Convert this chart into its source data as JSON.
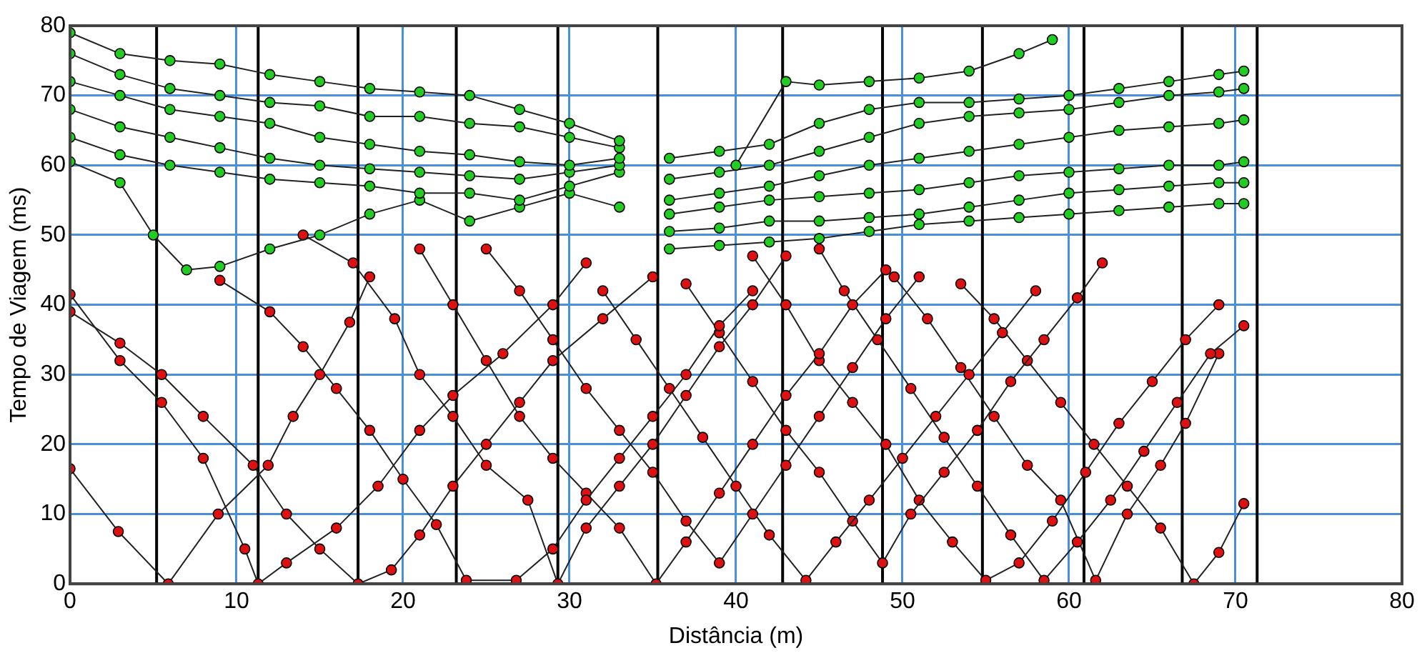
{
  "chart_data": {
    "type": "line",
    "xlabel": "Distância (m)",
    "ylabel": "Tempo de Viagem (ms)",
    "xlim": [
      0,
      80
    ],
    "ylim": [
      0,
      80
    ],
    "xticks": [
      0,
      10,
      20,
      30,
      40,
      50,
      60,
      70,
      80
    ],
    "yticks": [
      0,
      10,
      20,
      30,
      40,
      50,
      60,
      70,
      80
    ],
    "grid": true,
    "legend": false,
    "marker": "circle",
    "line_style": "solid",
    "ref_lines": [
      {
        "axis": "x",
        "value": 5.2,
        "color": "#000000"
      },
      {
        "axis": "x",
        "value": 11.3,
        "color": "#000000"
      },
      {
        "axis": "x",
        "value": 17.3,
        "color": "#000000"
      },
      {
        "axis": "x",
        "value": 23.2,
        "color": "#000000"
      },
      {
        "axis": "x",
        "value": 29.3,
        "color": "#000000"
      },
      {
        "axis": "x",
        "value": 35.3,
        "color": "#000000"
      },
      {
        "axis": "x",
        "value": 42.8,
        "color": "#000000"
      },
      {
        "axis": "x",
        "value": 48.8,
        "color": "#000000"
      },
      {
        "axis": "x",
        "value": 54.8,
        "color": "#000000"
      },
      {
        "axis": "x",
        "value": 60.9,
        "color": "#000000"
      },
      {
        "axis": "x",
        "value": 66.8,
        "color": "#000000"
      },
      {
        "axis": "x",
        "value": 71.3,
        "color": "#000000"
      }
    ],
    "series": [
      {
        "color": "#22cc22",
        "x": [
          0,
          3,
          6,
          9,
          12,
          15,
          18,
          21,
          24,
          27,
          30,
          33
        ],
        "values": [
          79,
          76,
          75,
          74.5,
          73,
          72,
          71,
          70.5,
          70,
          68,
          66,
          63.5
        ]
      },
      {
        "color": "#22cc22",
        "x": [
          0,
          3,
          6,
          9,
          12,
          15,
          18,
          21,
          24,
          27,
          30,
          33
        ],
        "values": [
          76,
          73,
          71,
          70,
          69,
          68.5,
          67,
          67,
          66,
          65.5,
          64,
          62.5
        ]
      },
      {
        "color": "#22cc22",
        "x": [
          0,
          3,
          6,
          9,
          12,
          15,
          18,
          21,
          24,
          27,
          30,
          33
        ],
        "values": [
          72,
          70,
          68,
          67,
          66,
          64,
          63,
          62,
          61.5,
          60.5,
          60,
          61
        ]
      },
      {
        "color": "#22cc22",
        "x": [
          0,
          3,
          6,
          9,
          12,
          15,
          18,
          21,
          24,
          27,
          30,
          33
        ],
        "values": [
          68,
          65.5,
          64,
          62.5,
          61,
          60,
          59.5,
          59,
          58.5,
          58,
          59,
          60
        ]
      },
      {
        "color": "#22cc22",
        "x": [
          0,
          3,
          6,
          9,
          12,
          15,
          18,
          21,
          24,
          27,
          30,
          33
        ],
        "values": [
          64,
          61.5,
          60,
          59,
          58,
          57.5,
          57,
          56,
          56,
          55,
          57,
          59
        ]
      },
      {
        "color": "#22cc22",
        "x": [
          0,
          3,
          5,
          7,
          9,
          12,
          15,
          18,
          21,
          24,
          27,
          30,
          33
        ],
        "values": [
          60.5,
          57.5,
          50,
          45,
          45.5,
          48,
          50,
          53,
          55,
          52,
          54,
          56,
          54
        ]
      },
      {
        "color": "#22cc22",
        "x": [
          40,
          43,
          45,
          48,
          51,
          54,
          57,
          59
        ],
        "values": [
          60,
          72,
          71.5,
          72,
          72.5,
          73.5,
          76,
          78
        ]
      },
      {
        "color": "#22cc22",
        "x": [
          36,
          39,
          42,
          45,
          48,
          51,
          54,
          57,
          60,
          63,
          66,
          69,
          70.5
        ],
        "values": [
          61,
          62,
          63,
          66,
          68,
          69,
          69,
          69.5,
          70,
          71,
          72,
          73,
          73.5
        ]
      },
      {
        "color": "#22cc22",
        "x": [
          36,
          39,
          42,
          45,
          48,
          51,
          54,
          57,
          60,
          63,
          66,
          69,
          70.5
        ],
        "values": [
          58,
          59,
          60,
          62,
          64,
          66,
          67,
          67.5,
          68,
          69,
          70,
          70.5,
          71
        ]
      },
      {
        "color": "#22cc22",
        "x": [
          36,
          39,
          42,
          45,
          48,
          51,
          54,
          57,
          60,
          63,
          66,
          69,
          70.5
        ],
        "values": [
          55,
          56,
          57,
          58.5,
          60,
          61,
          62,
          63,
          64,
          65,
          65.5,
          66,
          66.5
        ]
      },
      {
        "color": "#22cc22",
        "x": [
          36,
          39,
          42,
          45,
          48,
          51,
          54,
          57,
          60,
          63,
          66,
          69,
          70.5
        ],
        "values": [
          53,
          54,
          55,
          55.5,
          56,
          56.5,
          57.5,
          58.5,
          59,
          59.5,
          60,
          60,
          60.5
        ]
      },
      {
        "color": "#22cc22",
        "x": [
          36,
          39,
          42,
          45,
          48,
          51,
          54,
          57,
          60,
          63,
          66,
          69,
          70.5
        ],
        "values": [
          50.5,
          51,
          52,
          52,
          52.5,
          53,
          54,
          55,
          56,
          56.5,
          57,
          57.5,
          57.5
        ]
      },
      {
        "color": "#22cc22",
        "x": [
          36,
          39,
          42,
          45,
          48,
          51,
          54,
          57,
          60,
          63,
          66,
          69,
          70.5
        ],
        "values": [
          48,
          48.5,
          49,
          49.5,
          50.5,
          51.5,
          52,
          52.5,
          53,
          53.5,
          54,
          54.5,
          54.5
        ]
      },
      {
        "color": "#dd1111",
        "x": [
          0,
          2.9,
          5.9,
          8.9,
          11.9,
          13.4,
          15,
          16.8,
          18
        ],
        "values": [
          16.5,
          7.5,
          0,
          10,
          17,
          24,
          30,
          37.5,
          44
        ]
      },
      {
        "color": "#dd1111",
        "x": [
          0,
          3,
          5.5,
          8,
          10.5,
          11.3,
          13,
          16,
          18.5,
          21,
          23,
          26,
          29,
          31
        ],
        "values": [
          41.5,
          32,
          26,
          18,
          5,
          0,
          3,
          8,
          14,
          22,
          27,
          33,
          40,
          46
        ]
      },
      {
        "color": "#dd1111",
        "x": [
          0,
          3,
          5.5,
          8,
          11,
          13,
          15,
          17.3,
          19.3,
          21,
          23,
          25,
          27,
          29,
          32,
          35
        ],
        "values": [
          39,
          34.5,
          30,
          24,
          17,
          10,
          5,
          0,
          2,
          7,
          14,
          20,
          26,
          32,
          38,
          44
        ]
      },
      {
        "color": "#dd1111",
        "x": [
          9,
          12,
          14,
          16,
          18,
          20,
          22,
          23.8,
          26.8,
          29,
          31,
          33,
          35,
          37,
          39,
          41
        ],
        "values": [
          43.5,
          39,
          34,
          28,
          22,
          15,
          8.5,
          0.5,
          0.5,
          5,
          12,
          18,
          24,
          30,
          37,
          42
        ]
      },
      {
        "color": "#dd1111",
        "x": [
          14,
          17,
          19.5,
          21,
          23,
          25,
          27.5,
          29.3,
          31,
          33,
          35,
          37,
          39,
          41,
          43
        ],
        "values": [
          50,
          46,
          38,
          30,
          24,
          17,
          12,
          0,
          8,
          14,
          20,
          27,
          34,
          40,
          47
        ]
      },
      {
        "color": "#dd1111",
        "x": [
          21,
          23,
          25,
          27,
          29,
          31,
          33,
          35.2,
          37,
          39,
          41,
          43,
          45,
          47,
          49
        ],
        "values": [
          48,
          40,
          32,
          24,
          18,
          13,
          8,
          0,
          6,
          13,
          20,
          27,
          33,
          40,
          45
        ]
      },
      {
        "color": "#dd1111",
        "x": [
          25,
          27,
          29,
          31,
          33,
          35,
          37,
          39,
          41,
          43,
          45,
          47,
          49,
          51
        ],
        "values": [
          48,
          42,
          35,
          28,
          22,
          16,
          9,
          3,
          10,
          17,
          24,
          31,
          38,
          44
        ]
      },
      {
        "color": "#dd1111",
        "x": [
          32,
          34,
          36,
          38,
          40,
          42,
          44.2,
          46,
          48,
          50,
          52,
          54,
          56,
          58
        ],
        "values": [
          42,
          35,
          28,
          21,
          14,
          7,
          0.5,
          6,
          12,
          18,
          24,
          30,
          36,
          42
        ]
      },
      {
        "color": "#dd1111",
        "x": [
          37,
          39,
          41,
          43,
          45,
          47,
          48.8,
          50.5,
          52.5,
          54.5,
          56.5,
          58.5,
          60.5,
          62
        ],
        "values": [
          43,
          36,
          29,
          22,
          16,
          9,
          3,
          10,
          16,
          22,
          29,
          35,
          41,
          46
        ]
      },
      {
        "color": "#dd1111",
        "x": [
          41,
          43,
          45,
          47,
          49,
          51,
          53,
          55,
          57,
          59,
          61,
          63,
          65,
          67,
          69
        ],
        "values": [
          47,
          40,
          32,
          26,
          20,
          12,
          6,
          0.5,
          3,
          9,
          16,
          23,
          29,
          35,
          40
        ]
      },
      {
        "color": "#dd1111",
        "x": [
          45,
          46.5,
          48.5,
          50.5,
          52.5,
          54.5,
          56.5,
          58.5,
          60.5,
          62.5,
          64.5,
          66.5,
          68.5,
          70.5
        ],
        "values": [
          48,
          42,
          35,
          28,
          21,
          14,
          7,
          0.5,
          6,
          12,
          19,
          26,
          33,
          37
        ]
      },
      {
        "color": "#dd1111",
        "x": [
          49.5,
          51.5,
          53.5,
          55.5,
          57.5,
          59.5,
          61.6,
          63.5,
          65.5,
          67,
          69
        ],
        "values": [
          44,
          38,
          31,
          24,
          17,
          12,
          0.5,
          10,
          17,
          23,
          33
        ]
      },
      {
        "color": "#dd1111",
        "x": [
          53.5,
          55.5,
          57.5,
          59.5,
          61.5,
          63.5,
          65.5,
          67.5,
          69,
          70.5
        ],
        "values": [
          43,
          38,
          32,
          26,
          20,
          14,
          8,
          0,
          4.5,
          11.5
        ]
      }
    ]
  }
}
